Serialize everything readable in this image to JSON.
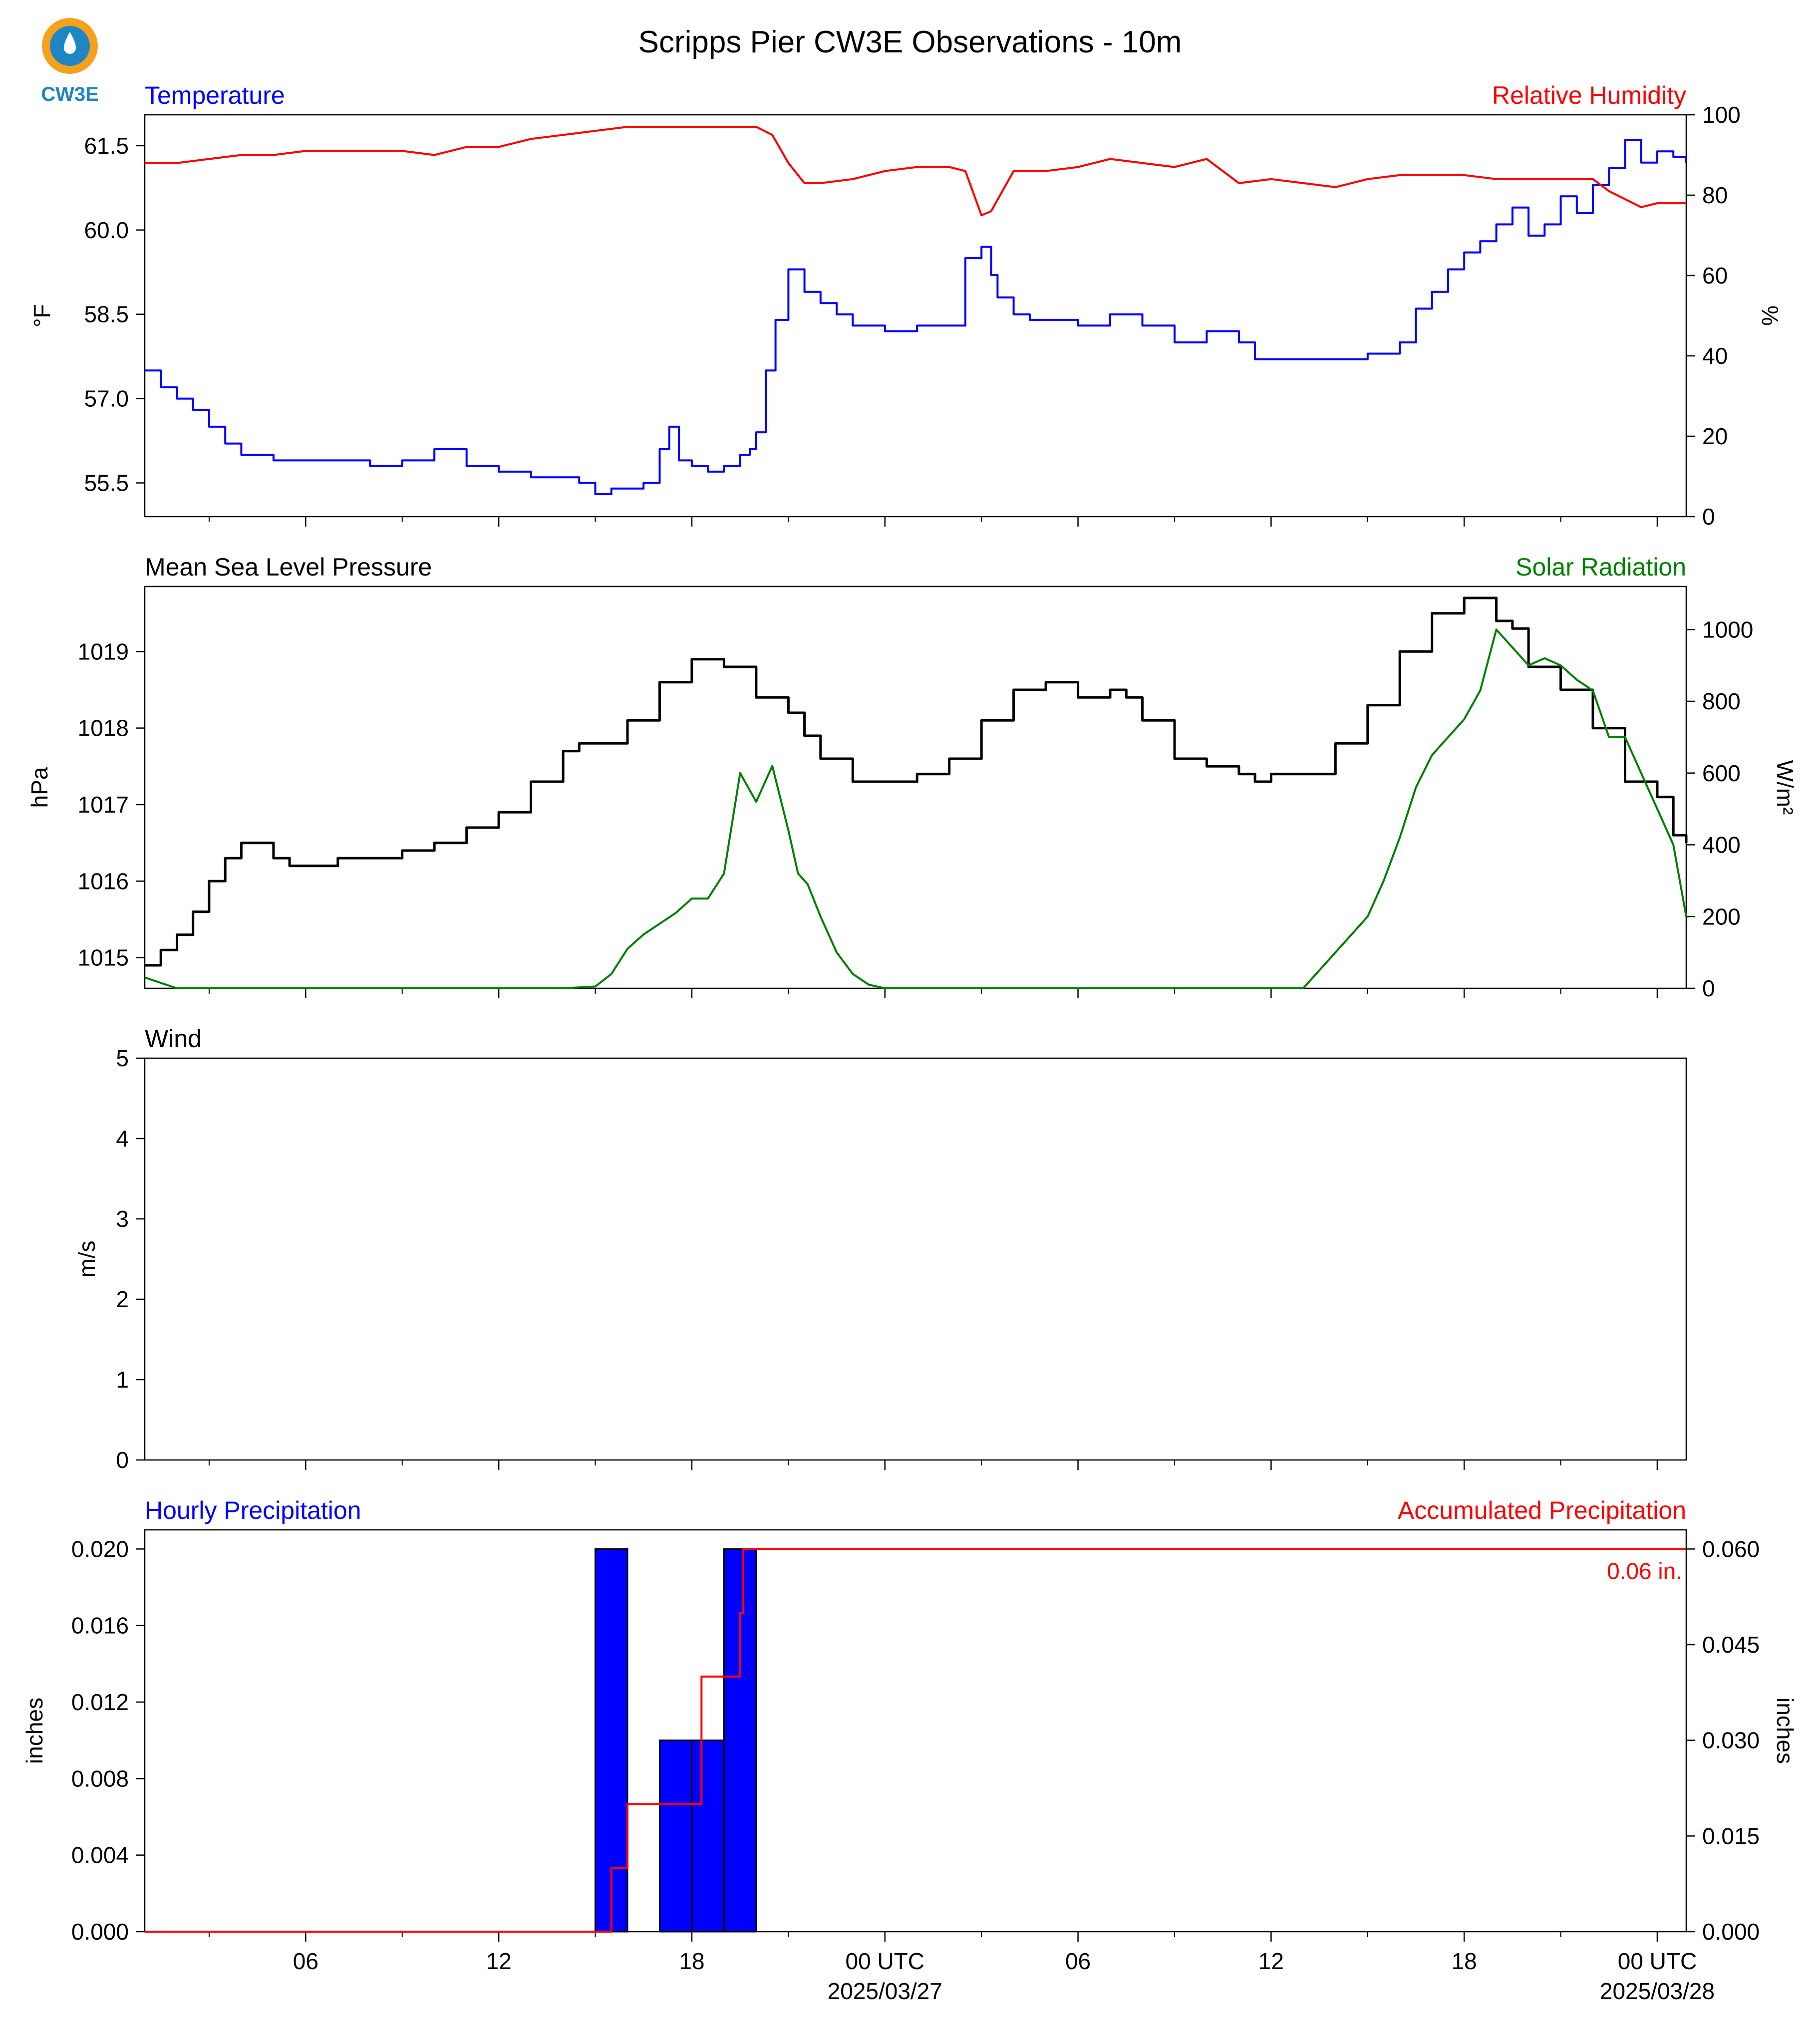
{
  "title": "Scripps Pier CW3E Observations - 10m",
  "logo": {
    "text": "CW3E",
    "colors": [
      "#f5a11c",
      "#1f86c4"
    ]
  },
  "x_ticks": {
    "labels": [
      "06",
      "12",
      "18",
      "00 UTC",
      "06",
      "12",
      "18",
      "00 UTC"
    ],
    "dates": [
      "",
      "",
      "",
      "2025/03/27",
      "",
      "",
      "",
      "2025/03/28"
    ]
  },
  "colors": {
    "temperature": "#0000ff",
    "humidity": "#ff0000",
    "pressure": "#000000",
    "solar": "#008000",
    "bars": "#0000ff",
    "accum": "#ff0000"
  },
  "chart_data": [
    {
      "type": "line",
      "left_title": "Temperature",
      "right_title": "Relative Humidity",
      "ylabel": "°F",
      "ylabel_right": "%",
      "x_unit": "hours since first tick origin (00 UTC 2025/03/26)",
      "xlim": [
        1,
        48.9
      ],
      "ylim": [
        54.9,
        62.05
      ],
      "yticks": [
        "55.5",
        "57.0",
        "58.5",
        "60.0",
        "61.5"
      ],
      "ylim_right": [
        0,
        100
      ],
      "yticks_right": [
        "0",
        "20",
        "40",
        "60",
        "80",
        "100"
      ],
      "series": [
        {
          "name": "Temperature",
          "axis": "left",
          "x": [
            1.0,
            1.5,
            2.0,
            2.5,
            3.0,
            3.5,
            4.0,
            5.0,
            6.0,
            7.0,
            8.0,
            9.0,
            10.0,
            11.0,
            12.0,
            13.0,
            14.0,
            14.5,
            15.0,
            15.5,
            16.0,
            16.5,
            17.0,
            17.3,
            17.6,
            18.0,
            18.5,
            19.0,
            19.5,
            19.8,
            20.0,
            20.3,
            20.6,
            21.0,
            21.5,
            22.0,
            22.5,
            23.0,
            24.0,
            25.0,
            26.0,
            26.5,
            27.0,
            27.3,
            27.5,
            28.0,
            28.5,
            29.0,
            30.0,
            31.0,
            32.0,
            33.0,
            34.0,
            35.0,
            35.5,
            36.0,
            37.0,
            38.0,
            39.0,
            40.0,
            40.5,
            41.0,
            41.5,
            42.0,
            42.5,
            43.0,
            43.5,
            44.0,
            44.5,
            45.0,
            45.5,
            46.0,
            46.5,
            47.0,
            47.5,
            48.0,
            48.5,
            48.9
          ],
          "values": [
            57.5,
            57.2,
            57.0,
            56.8,
            56.5,
            56.2,
            56.0,
            55.9,
            55.9,
            55.9,
            55.8,
            55.9,
            56.1,
            55.8,
            55.7,
            55.6,
            55.6,
            55.5,
            55.3,
            55.4,
            55.4,
            55.5,
            56.1,
            56.5,
            55.9,
            55.8,
            55.7,
            55.8,
            56.0,
            56.1,
            56.4,
            57.5,
            58.4,
            59.3,
            58.9,
            58.7,
            58.5,
            58.3,
            58.2,
            58.3,
            58.3,
            59.5,
            59.7,
            59.2,
            58.8,
            58.5,
            58.4,
            58.4,
            58.3,
            58.5,
            58.3,
            58.0,
            58.2,
            58.0,
            57.7,
            57.7,
            57.7,
            57.7,
            57.8,
            58.0,
            58.6,
            58.9,
            59.3,
            59.6,
            59.8,
            60.1,
            60.4,
            59.9,
            60.1,
            60.6,
            60.3,
            60.8,
            61.1,
            61.6,
            61.2,
            61.4,
            61.3,
            61.2
          ]
        },
        {
          "name": "Relative Humidity",
          "axis": "right",
          "x": [
            1.0,
            2.0,
            3.0,
            4.0,
            5.0,
            6.0,
            7.0,
            8.0,
            9.0,
            10.0,
            11.0,
            12.0,
            13.0,
            14.0,
            15.0,
            16.0,
            17.0,
            18.0,
            19.0,
            20.0,
            20.5,
            21.0,
            21.5,
            22.0,
            23.0,
            24.0,
            25.0,
            26.0,
            26.5,
            27.0,
            27.3,
            28.0,
            29.0,
            30.0,
            31.0,
            32.0,
            33.0,
            34.0,
            35.0,
            36.0,
            37.0,
            38.0,
            39.0,
            40.0,
            41.0,
            42.0,
            43.0,
            44.0,
            45.0,
            46.0,
            46.5,
            47.0,
            47.5,
            48.0,
            48.5,
            48.9
          ],
          "values": [
            88,
            88,
            89,
            90,
            90,
            91,
            91,
            91,
            91,
            90,
            92,
            92,
            94,
            95,
            96,
            97,
            97,
            97,
            97,
            97,
            95,
            88,
            83,
            83,
            84,
            86,
            87,
            87,
            86,
            75,
            76,
            86,
            86,
            87,
            89,
            88,
            87,
            89,
            83,
            84,
            83,
            82,
            84,
            85,
            85,
            85,
            84,
            84,
            84,
            84,
            81,
            79,
            77,
            78,
            78,
            78
          ]
        }
      ]
    },
    {
      "type": "line",
      "left_title": "Mean Sea Level Pressure",
      "right_title": "Solar Radiation",
      "ylabel": "hPa",
      "ylabel_right": "W/m²",
      "x_unit": "hours since first tick origin (00 UTC 2025/03/26)",
      "xlim": [
        1,
        48.9
      ],
      "ylim": [
        1014.6,
        1019.85
      ],
      "yticks": [
        "1015",
        "1016",
        "1017",
        "1018",
        "1019"
      ],
      "ylim_right": [
        0,
        1120
      ],
      "yticks_right": [
        "0",
        "200",
        "400",
        "600",
        "800",
        "1000"
      ],
      "series": [
        {
          "name": "Mean Sea Level Pressure",
          "axis": "left",
          "x": [
            1.0,
            1.5,
            2.0,
            2.5,
            3.0,
            3.5,
            4.0,
            5.0,
            5.5,
            6.0,
            7.0,
            8.0,
            9.0,
            10.0,
            11.0,
            12.0,
            13.0,
            14.0,
            14.5,
            15.0,
            16.0,
            17.0,
            18.0,
            19.0,
            20.0,
            21.0,
            21.5,
            22.0,
            23.0,
            24.0,
            25.0,
            26.0,
            27.0,
            28.0,
            29.0,
            30.0,
            31.0,
            31.5,
            32.0,
            33.0,
            34.0,
            35.0,
            35.5,
            36.0,
            37.0,
            38.0,
            39.0,
            40.0,
            41.0,
            42.0,
            43.0,
            43.5,
            44.0,
            45.0,
            46.0,
            47.0,
            48.0,
            48.5,
            48.9
          ],
          "values": [
            1014.9,
            1015.1,
            1015.3,
            1015.6,
            1016.0,
            1016.3,
            1016.5,
            1016.3,
            1016.2,
            1016.2,
            1016.3,
            1016.3,
            1016.4,
            1016.5,
            1016.7,
            1016.9,
            1017.3,
            1017.7,
            1017.8,
            1017.8,
            1018.1,
            1018.6,
            1018.9,
            1018.8,
            1018.4,
            1018.2,
            1017.9,
            1017.6,
            1017.3,
            1017.3,
            1017.4,
            1017.6,
            1018.1,
            1018.5,
            1018.6,
            1018.4,
            1018.5,
            1018.4,
            1018.1,
            1017.6,
            1017.5,
            1017.4,
            1017.3,
            1017.4,
            1017.4,
            1017.8,
            1018.3,
            1019.0,
            1019.5,
            1019.7,
            1019.4,
            1019.3,
            1018.8,
            1018.5,
            1018.0,
            1017.3,
            1017.1,
            1016.6,
            1016.5
          ]
        },
        {
          "name": "Solar Radiation",
          "axis": "right",
          "x": [
            1.0,
            2.0,
            3.0,
            4.0,
            5.0,
            6.0,
            7.0,
            8.0,
            9.0,
            10.0,
            11.0,
            12.0,
            13.0,
            14.0,
            15.0,
            15.5,
            16.0,
            16.5,
            17.0,
            17.5,
            18.0,
            18.5,
            19.0,
            19.5,
            20.0,
            20.5,
            21.0,
            21.3,
            21.6,
            22.0,
            22.5,
            23.0,
            23.5,
            24.0,
            25.0,
            26.0,
            27.0,
            28.0,
            29.0,
            30.0,
            31.0,
            32.0,
            33.0,
            34.0,
            35.0,
            36.0,
            37.0,
            38.0,
            39.0,
            39.5,
            40.0,
            40.5,
            41.0,
            41.5,
            42.0,
            42.5,
            43.0,
            43.5,
            44.0,
            44.5,
            45.0,
            45.5,
            46.0,
            46.5,
            47.0,
            47.5,
            48.0,
            48.5,
            48.9
          ],
          "values": [
            30,
            0,
            0,
            0,
            0,
            0,
            0,
            0,
            0,
            0,
            0,
            0,
            0,
            0,
            5,
            40,
            110,
            150,
            180,
            210,
            250,
            250,
            320,
            600,
            520,
            620,
            440,
            320,
            290,
            200,
            100,
            40,
            10,
            0,
            0,
            0,
            0,
            0,
            0,
            0,
            0,
            0,
            0,
            0,
            0,
            0,
            0,
            100,
            200,
            300,
            420,
            560,
            650,
            700,
            750,
            830,
            1000,
            950,
            900,
            920,
            900,
            860,
            830,
            700,
            700,
            600,
            500,
            400,
            200
          ]
        }
      ]
    },
    {
      "type": "line",
      "left_title": "Wind",
      "ylabel": "m/s",
      "x_unit": "hours since first tick origin (00 UTC 2025/03/26)",
      "xlim": [
        1,
        48.9
      ],
      "ylim": [
        0,
        5
      ],
      "yticks": [
        "0",
        "1",
        "2",
        "3",
        "4",
        "5"
      ],
      "series": []
    },
    {
      "type": "bar",
      "left_title": "Hourly Precipitation",
      "right_title": "Accumulated Precipitation",
      "annotation": "0.06 in.",
      "ylabel": "inches",
      "ylabel_right": "inches",
      "x_unit": "hours since first tick origin (00 UTC 2025/03/26)",
      "xlim": [
        1,
        48.9
      ],
      "ylim": [
        0,
        0.021
      ],
      "yticks": [
        "0.000",
        "0.004",
        "0.008",
        "0.012",
        "0.016",
        "0.020"
      ],
      "ylim_right": [
        0,
        0.063
      ],
      "yticks_right": [
        "0.000",
        "0.015",
        "0.030",
        "0.045",
        "0.060"
      ],
      "bars": {
        "x_start": [
          15,
          17,
          18,
          19
        ],
        "values": [
          0.02,
          0.01,
          0.01,
          0.02
        ]
      },
      "series": [
        {
          "name": "Accumulated Precipitation",
          "axis": "right",
          "x": [
            1.0,
            15.0,
            15.5,
            16.0,
            17.0,
            18.3,
            18.3,
            19.0,
            19.5,
            19.6,
            48.9
          ],
          "values": [
            0.0,
            0.0,
            0.01,
            0.02,
            0.02,
            0.03,
            0.04,
            0.04,
            0.05,
            0.06,
            0.06
          ]
        }
      ]
    }
  ]
}
